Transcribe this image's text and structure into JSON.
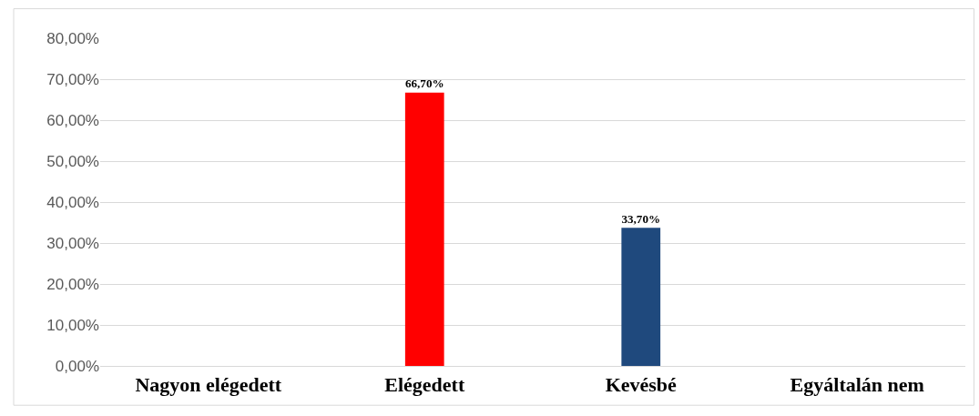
{
  "chart_data": {
    "type": "bar",
    "categories": [
      "Nagyon elégedett",
      "Elégedett",
      "Kevésbé",
      "Egyáltalán nem"
    ],
    "values": [
      0,
      66.7,
      33.7,
      0
    ],
    "colors": [
      "#ff0000",
      "#ff0000",
      "#1f497d",
      "#1f497d"
    ],
    "value_labels": [
      null,
      "66,70%",
      "33,70%",
      null
    ],
    "ylim": [
      0,
      80
    ],
    "yticks": [
      {
        "value": 0,
        "label": "0,00%"
      },
      {
        "value": 10,
        "label": "10,00%"
      },
      {
        "value": 20,
        "label": "20,00%"
      },
      {
        "value": 30,
        "label": "30,00%"
      },
      {
        "value": 40,
        "label": "40,00%"
      },
      {
        "value": 50,
        "label": "50,00%"
      },
      {
        "value": 60,
        "label": "60,00%"
      },
      {
        "value": 70,
        "label": "70,00%"
      },
      {
        "value": 80,
        "label": "80,00%"
      }
    ],
    "grid": "y"
  }
}
